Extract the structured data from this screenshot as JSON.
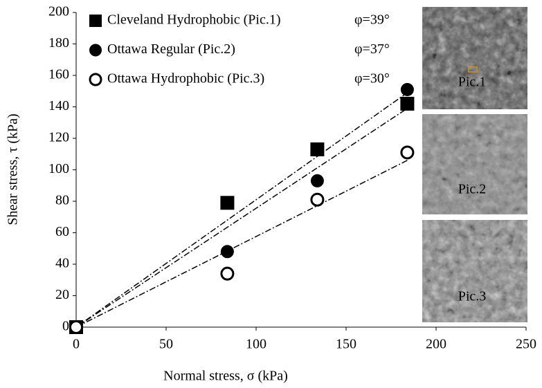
{
  "chart_data": {
    "type": "scatter",
    "xlabel": "Normal stress, σ (kPa)",
    "ylabel": "Shear stress, τ (kPa)",
    "xlim": [
      0,
      250
    ],
    "xticks": [
      0,
      50,
      100,
      150,
      200,
      250
    ],
    "ylim": [
      0,
      200
    ],
    "yticks": [
      0,
      20,
      40,
      60,
      80,
      100,
      120,
      140,
      160,
      180,
      200
    ],
    "series": [
      {
        "name": "Cleveland Hydrophobic (Pic.1)",
        "annotation": "φ=39°",
        "marker": "square",
        "color": "#000000",
        "x": [
          0,
          84,
          134,
          184
        ],
        "values": [
          0,
          79,
          113,
          142
        ],
        "trendline": {
          "x": [
            0,
            184
          ],
          "values": [
            0,
            149
          ]
        }
      },
      {
        "name": "Ottawa Regular (Pic.2)",
        "annotation": "φ=37°",
        "marker": "circle",
        "color": "#000000",
        "x": [
          0,
          84,
          134,
          184
        ],
        "values": [
          0,
          48,
          93,
          151
        ],
        "trendline": {
          "x": [
            0,
            184
          ],
          "values": [
            0,
            139
          ]
        }
      },
      {
        "name": "Ottawa Hydrophobic (Pic.3)",
        "annotation": "φ=30°",
        "marker": "open-circle",
        "color": "#000000",
        "x": [
          0,
          84,
          134,
          184
        ],
        "values": [
          0,
          34,
          81,
          111
        ],
        "trendline": {
          "x": [
            0,
            184
          ],
          "values": [
            0,
            106
          ]
        }
      }
    ],
    "images": [
      "Pic.1",
      "Pic.2",
      "Pic.3"
    ]
  }
}
